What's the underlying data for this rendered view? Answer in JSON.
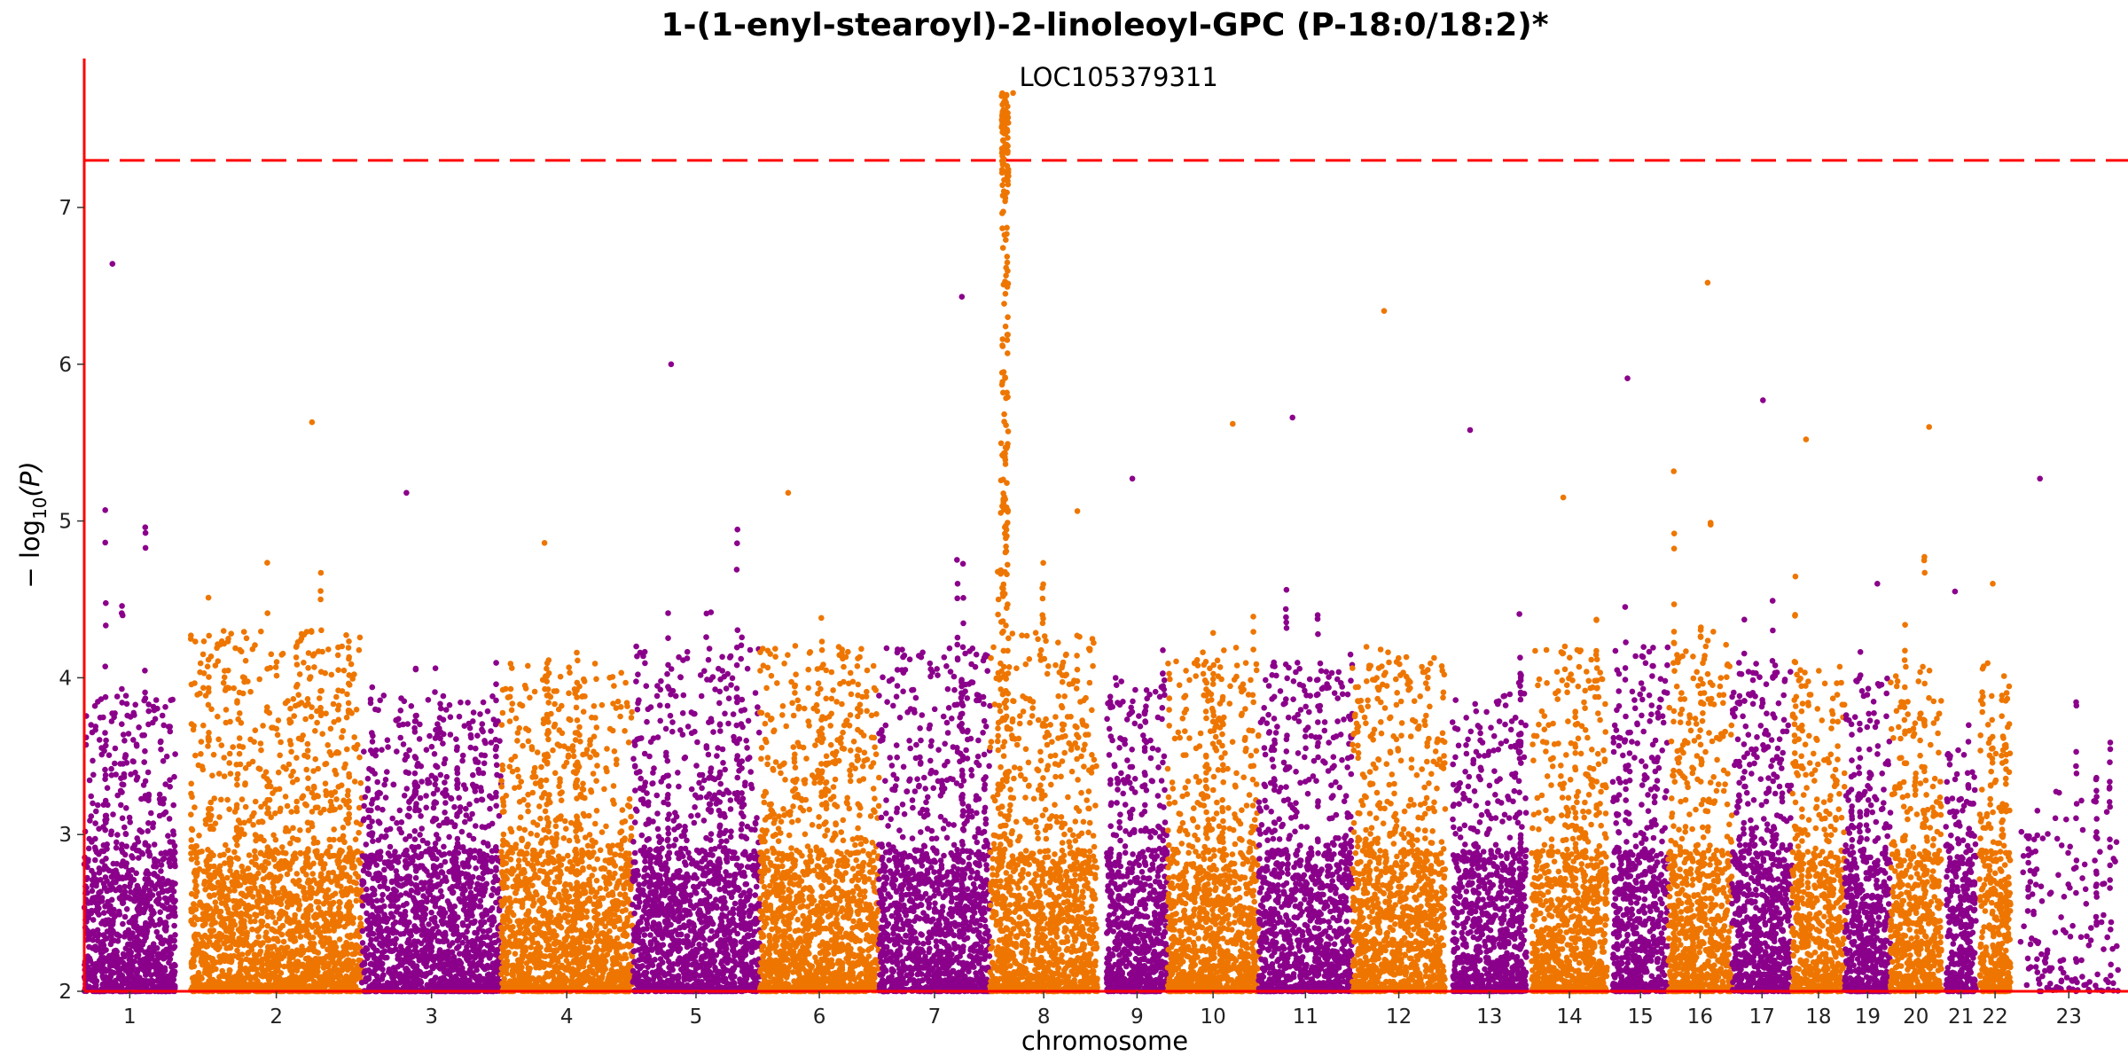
{
  "chart_data": {
    "type": "scatter",
    "subtype": "manhattan",
    "title": "1-(1-enyl-stearoyl)-2-linoleoyl-GPC (P-18:0/18:2)*",
    "xlabel": "chromosome",
    "ylabel_prefix": "− log",
    "ylabel_sub": "10",
    "ylabel_suffix": "(P)",
    "ylim": [
      2,
      7.95
    ],
    "yticks": [
      2,
      3,
      4,
      5,
      6,
      7
    ],
    "threshold": 7.3,
    "chromosomes": [
      {
        "label": "1",
        "start": 0,
        "end": 1.0,
        "color": "#8b008b",
        "peak": 6.64,
        "base": 3.9
      },
      {
        "label": "2",
        "start": 1.17,
        "end": 3.05,
        "color": "#ee7600",
        "peak": 5.63,
        "base": 4.3
      },
      {
        "label": "3",
        "start": 3.05,
        "end": 4.58,
        "color": "#8b008b",
        "peak": 5.18,
        "base": 3.9
      },
      {
        "label": "4",
        "start": 4.58,
        "end": 6.02,
        "color": "#ee7600",
        "peak": 4.86,
        "base": 4.1
      },
      {
        "label": "5",
        "start": 6.02,
        "end": 7.42,
        "color": "#8b008b",
        "peak": 6.0,
        "base": 4.2
      },
      {
        "label": "6",
        "start": 7.42,
        "end": 8.73,
        "color": "#ee7600",
        "peak": 5.18,
        "base": 4.2
      },
      {
        "label": "7",
        "start": 8.73,
        "end": 9.95,
        "color": "#8b008b",
        "peak": 6.43,
        "base": 4.2
      },
      {
        "label": "8",
        "start": 9.95,
        "end": 11.13,
        "color": "#ee7600",
        "peak": 7.73,
        "base": 4.3
      },
      {
        "label": "9",
        "start": 11.23,
        "end": 11.9,
        "color": "#8b008b",
        "peak": 5.27,
        "base": 4.0
      },
      {
        "label": "10",
        "start": 11.9,
        "end": 12.9,
        "color": "#ee7600",
        "peak": 5.62,
        "base": 4.2
      },
      {
        "label": "11",
        "start": 12.9,
        "end": 13.93,
        "color": "#8b008b",
        "peak": 5.66,
        "base": 4.1
      },
      {
        "label": "12",
        "start": 13.93,
        "end": 14.95,
        "color": "#ee7600",
        "peak": 6.34,
        "base": 4.2
      },
      {
        "label": "13",
        "start": 15.03,
        "end": 15.84,
        "color": "#8b008b",
        "peak": 5.58,
        "base": 3.9
      },
      {
        "label": "14",
        "start": 15.9,
        "end": 16.73,
        "color": "#ee7600",
        "peak": 5.15,
        "base": 4.2
      },
      {
        "label": "15",
        "start": 16.79,
        "end": 17.4,
        "color": "#8b008b",
        "peak": 5.91,
        "base": 4.2
      },
      {
        "label": "16",
        "start": 17.4,
        "end": 18.1,
        "color": "#ee7600",
        "peak": 6.52,
        "base": 4.3
      },
      {
        "label": "17",
        "start": 18.1,
        "end": 18.76,
        "color": "#8b008b",
        "peak": 5.77,
        "base": 4.1
      },
      {
        "label": "18",
        "start": 18.76,
        "end": 19.34,
        "color": "#ee7600",
        "peak": 5.52,
        "base": 4.1
      },
      {
        "label": "19",
        "start": 19.34,
        "end": 19.84,
        "color": "#8b008b",
        "peak": 4.6,
        "base": 4.0
      },
      {
        "label": "20",
        "start": 19.84,
        "end": 20.4,
        "color": "#ee7600",
        "peak": 5.6,
        "base": 4.1
      },
      {
        "label": "21",
        "start": 20.45,
        "end": 20.78,
        "color": "#8b008b",
        "peak": 4.55,
        "base": 3.6
      },
      {
        "label": "22",
        "start": 20.82,
        "end": 21.16,
        "color": "#ee7600",
        "peak": 4.6,
        "base": 4.1
      },
      {
        "label": "23",
        "start": 21.26,
        "end": 22.34,
        "color": "#8b008b",
        "peak": 5.27,
        "base": 3.3,
        "sparse": true
      }
    ],
    "annotations": [
      {
        "label": "LOC105379311",
        "chromosome": "8",
        "y": 7.73
      }
    ]
  },
  "colors": {
    "purple": "#8b008b",
    "orange": "#ee7600",
    "threshold_line": "#ff0000",
    "axis": "#ff0000"
  }
}
